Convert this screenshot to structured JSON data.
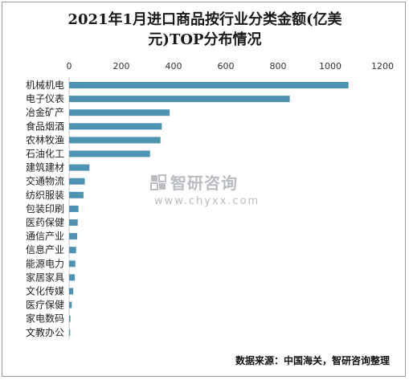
{
  "chart_data": {
    "type": "bar",
    "orientation": "horizontal",
    "title": "2021年1月进口商品按行业分类金额(亿美元)TOP分布情况",
    "title_lines": [
      "2021年1月进口商品按行业分类金额(亿美",
      "元)TOP分布情况"
    ],
    "categories": [
      "机械机电",
      "电子仪表",
      "冶金矿产",
      "食品烟酒",
      "农林牧渔",
      "石油化工",
      "建筑建材",
      "交通物流",
      "纺织服装",
      "包装印刷",
      "医药保健",
      "通信产业",
      "信息产业",
      "能源电力",
      "家居家具",
      "文化传媒",
      "医疗保健",
      "家电数码",
      "文教办公"
    ],
    "values": [
      1070,
      845,
      385,
      355,
      350,
      310,
      78,
      60,
      55,
      36,
      33,
      31,
      27,
      24,
      22,
      16,
      10,
      5,
      4
    ],
    "xlim": [
      0,
      1200
    ],
    "xticks": [
      0,
      200,
      400,
      600,
      800,
      1000,
      1200
    ],
    "axis_position": "top",
    "grid": false,
    "bar_color": "#4f93b4"
  },
  "watermark": {
    "brand": "智研咨询",
    "url": "www.chyxx.com",
    "icon": "chyxx-logo-icon"
  },
  "source": "数据来源：中国海关，智研咨询整理"
}
